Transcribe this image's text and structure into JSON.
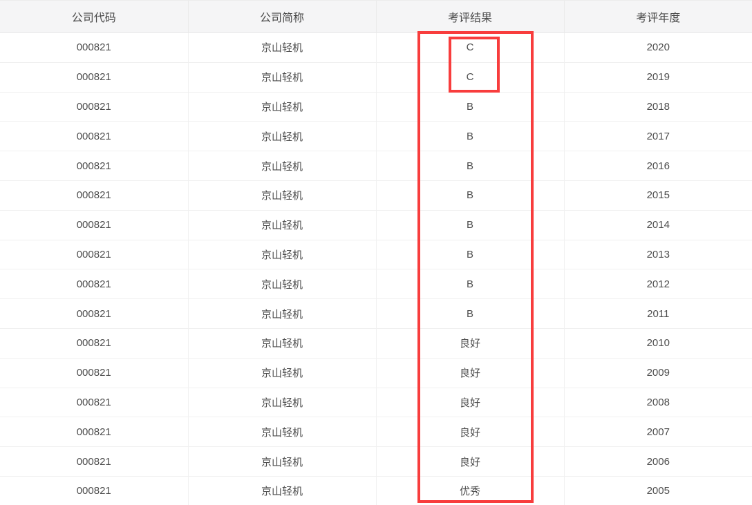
{
  "table": {
    "headers": [
      {
        "key": "code",
        "label": "公司代码"
      },
      {
        "key": "name",
        "label": "公司简称"
      },
      {
        "key": "result",
        "label": "考评结果"
      },
      {
        "key": "year",
        "label": "考评年度"
      }
    ],
    "rows": [
      {
        "code": "000821",
        "name": "京山轻机",
        "result": "C",
        "year": "2020"
      },
      {
        "code": "000821",
        "name": "京山轻机",
        "result": "C",
        "year": "2019"
      },
      {
        "code": "000821",
        "name": "京山轻机",
        "result": "B",
        "year": "2018"
      },
      {
        "code": "000821",
        "name": "京山轻机",
        "result": "B",
        "year": "2017"
      },
      {
        "code": "000821",
        "name": "京山轻机",
        "result": "B",
        "year": "2016"
      },
      {
        "code": "000821",
        "name": "京山轻机",
        "result": "B",
        "year": "2015"
      },
      {
        "code": "000821",
        "name": "京山轻机",
        "result": "B",
        "year": "2014"
      },
      {
        "code": "000821",
        "name": "京山轻机",
        "result": "B",
        "year": "2013"
      },
      {
        "code": "000821",
        "name": "京山轻机",
        "result": "B",
        "year": "2012"
      },
      {
        "code": "000821",
        "name": "京山轻机",
        "result": "B",
        "year": "2011"
      },
      {
        "code": "000821",
        "name": "京山轻机",
        "result": "良好",
        "year": "2010"
      },
      {
        "code": "000821",
        "name": "京山轻机",
        "result": "良好",
        "year": "2009"
      },
      {
        "code": "000821",
        "name": "京山轻机",
        "result": "良好",
        "year": "2008"
      },
      {
        "code": "000821",
        "name": "京山轻机",
        "result": "良好",
        "year": "2007"
      },
      {
        "code": "000821",
        "name": "京山轻机",
        "result": "良好",
        "year": "2006"
      },
      {
        "code": "000821",
        "name": "京山轻机",
        "result": "优秀",
        "year": "2005"
      }
    ]
  },
  "colors": {
    "annotation_red": "#f83d3d",
    "header_bg": "#f5f5f6",
    "row_border": "#f0f0f0",
    "text": "#4d4d4d"
  }
}
